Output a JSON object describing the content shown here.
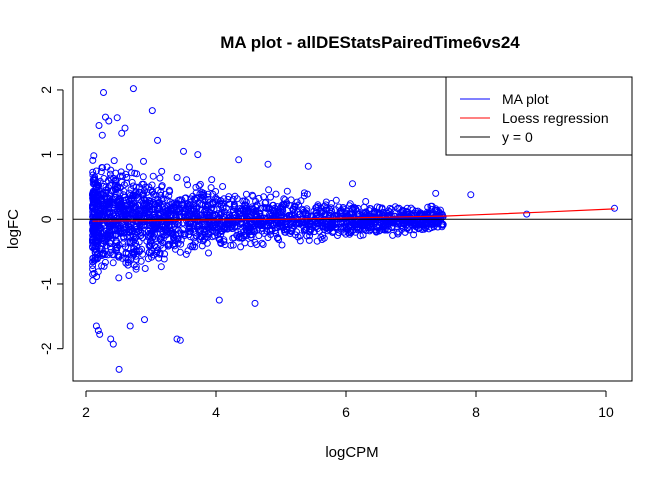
{
  "chart_data": {
    "type": "scatter",
    "title": "MA plot - allDEStatsPairedTime6vs24",
    "xlabel": "logCPM",
    "ylabel": "logFC",
    "xlim": [
      1.8,
      10.4
    ],
    "ylim": [
      -2.5,
      2.2
    ],
    "xticks": [
      "2",
      "4",
      "6",
      "8",
      "10"
    ],
    "yticks": [
      "-2",
      "-1",
      "0",
      "1",
      "2"
    ],
    "grid": false,
    "legend_position": "top-right",
    "legend": [
      {
        "label": "MA plot",
        "color": "#0000ff"
      },
      {
        "label": "Loess regression",
        "color": "#ff0000"
      },
      {
        "label": "y = 0",
        "color": "#000000"
      }
    ],
    "point_color": "#0000ff",
    "loess_color": "#ff0000",
    "hline_y": 0,
    "series": [
      {
        "name": "MA plot",
        "kind": "points",
        "x": [
          2.27,
          2.73,
          2.3,
          3.02,
          2.2,
          2.35,
          2.48,
          2.6,
          2.25,
          2.55,
          3.1,
          3.5,
          3.72,
          4.35,
          4.8,
          5.42,
          6.1,
          7.38,
          7.92,
          8.78,
          10.13,
          2.16,
          2.21,
          2.38,
          2.42,
          2.68,
          2.9,
          3.4,
          3.45,
          4.05,
          4.6,
          2.19,
          2.51
        ],
        "y": [
          1.96,
          2.02,
          1.58,
          1.68,
          1.45,
          1.52,
          1.57,
          1.41,
          1.3,
          1.33,
          1.22,
          1.05,
          1.0,
          0.92,
          0.85,
          0.82,
          0.55,
          0.4,
          0.38,
          0.08,
          0.17,
          -1.65,
          -1.78,
          -1.85,
          -1.93,
          -1.65,
          -1.55,
          -1.85,
          -1.87,
          -1.25,
          -1.3,
          -1.72,
          -2.32
        ]
      },
      {
        "name": "Loess regression",
        "kind": "line",
        "x": [
          2.1,
          3,
          4,
          5,
          6,
          7,
          7.5,
          8,
          9,
          10.13
        ],
        "y": [
          -0.03,
          -0.02,
          -0.01,
          0.0,
          0.02,
          0.04,
          0.05,
          0.07,
          0.11,
          0.16
        ]
      }
    ]
  }
}
